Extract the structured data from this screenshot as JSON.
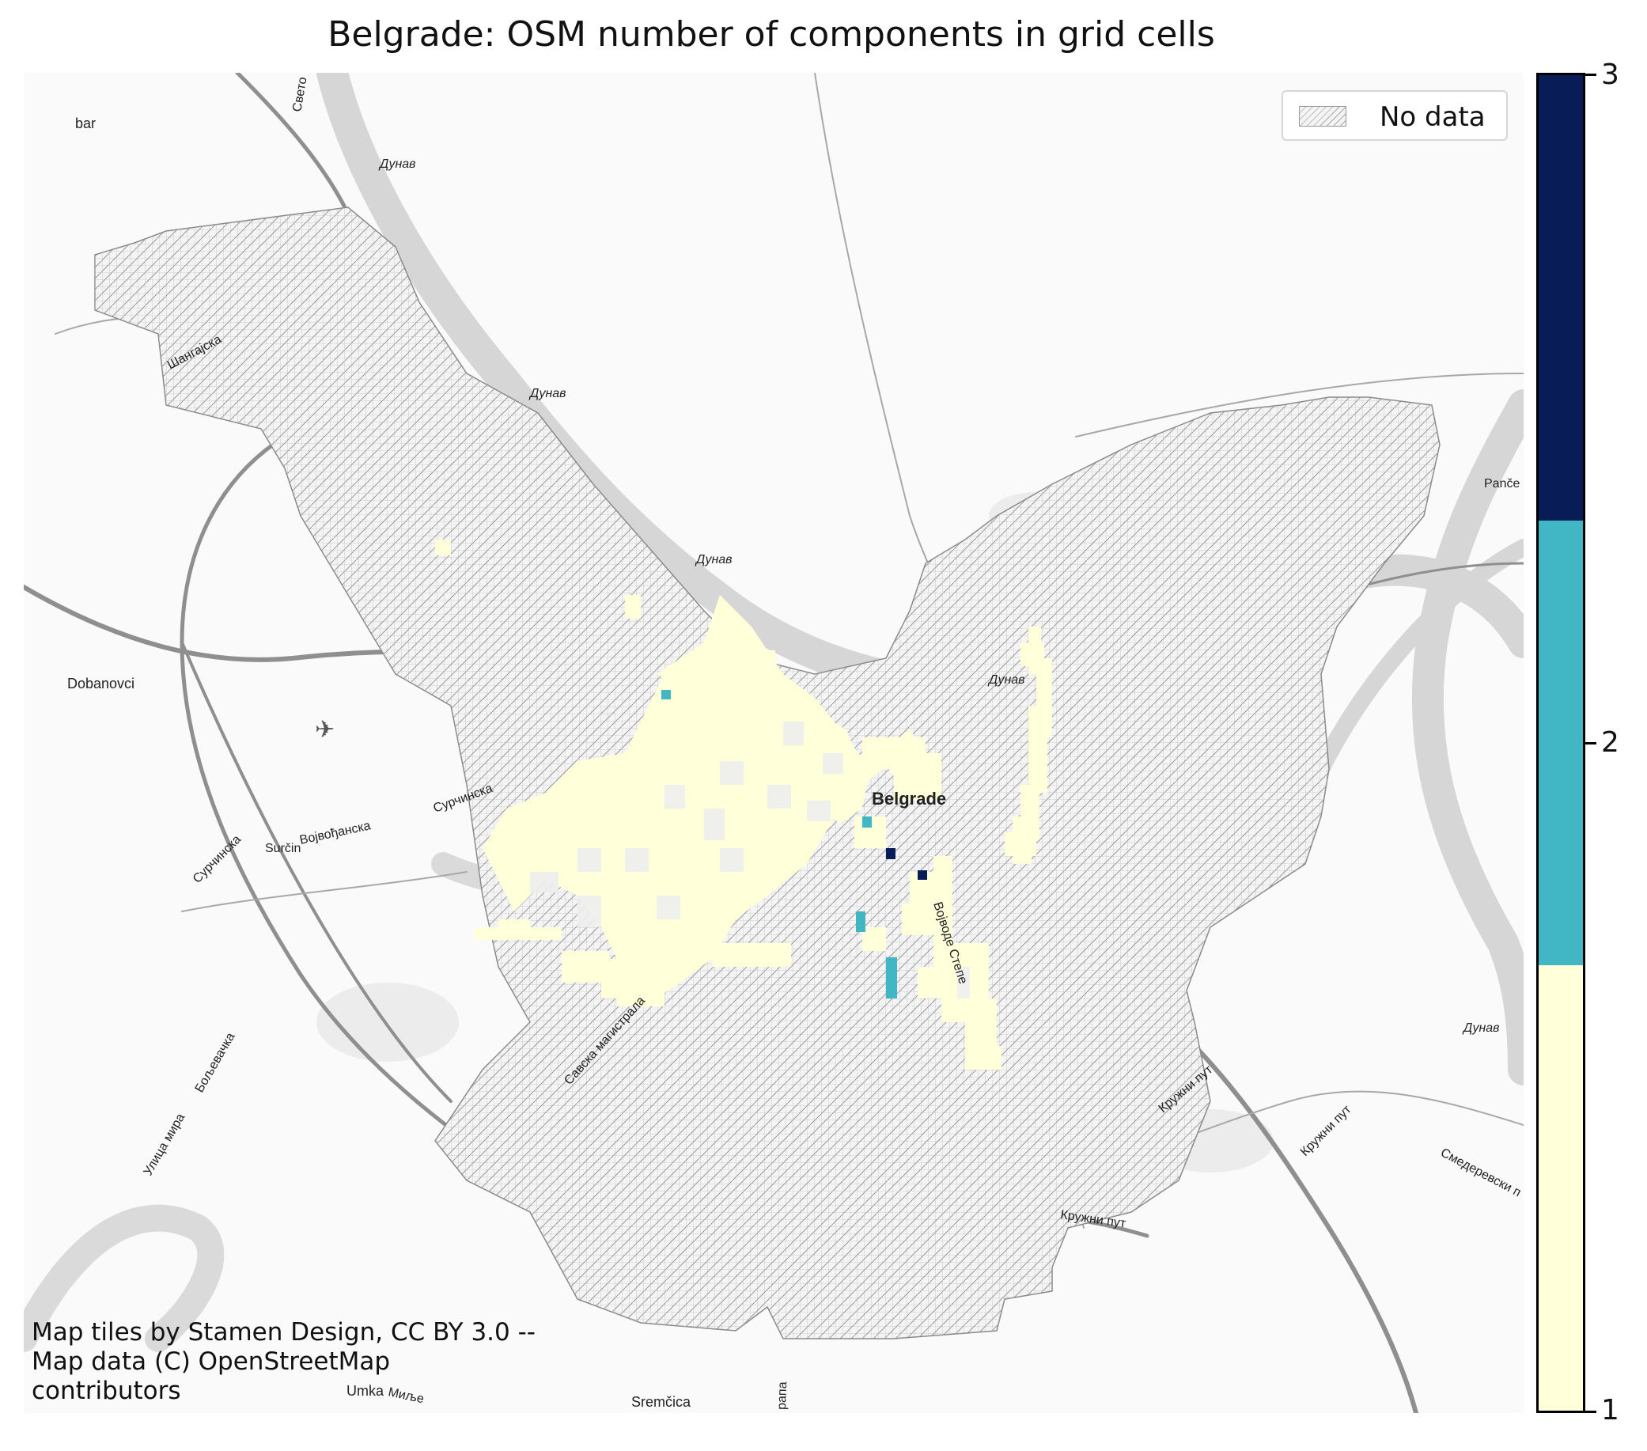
{
  "map": {
    "title": "Belgrade: OSM number of components in grid cells",
    "legend": {
      "label": "No data",
      "swatch": "hatched-grey"
    },
    "attribution": "Map tiles by Stamen Design, CC BY 3.0 -- Map data (C) OpenStreetMap contributors",
    "basemap_labels": {
      "bar": "bar",
      "sveto": "Свето",
      "dunav1": "Дунав",
      "dunav2": "Дунав",
      "dunav3": "Дунав",
      "dunav4": "Дунав",
      "dunav5": "Дунав",
      "shangajska": "Шангајска",
      "dobanovci": "Dobanovci",
      "surcinska": "Сурчинска",
      "vojvodjanska": "Војвођанска",
      "surcin": "Surčin",
      "surcinska2": "Сурчинска",
      "belgrade": "Belgrade",
      "vojvode_stepe": "Војводе Степе",
      "savska": "Савска магистрала",
      "pance": "Panče",
      "ulica_mira": "Улица мира",
      "boljevacka": "Бољевачка",
      "kruzni1": "Кружни пут",
      "kruzni2": "Кружни пут",
      "kruzni3": "Кружни пут",
      "smederevski": "Смедеревски п",
      "umka": "Umka",
      "milje": "Миље",
      "sremcica": "Sremčica",
      "rapa": "рапа"
    },
    "colorbar": {
      "min": 1,
      "max": 3,
      "ticks": [
        "1",
        "2",
        "3"
      ],
      "colors": [
        "#ffffd9",
        "#41b6c4",
        "#081d58"
      ]
    },
    "cell_classes": {
      "value_1_color": "#ffffd9",
      "value_2_color": "#41b6c4",
      "value_3_color": "#081d58",
      "no_data_color": "#b4b4b4"
    }
  }
}
